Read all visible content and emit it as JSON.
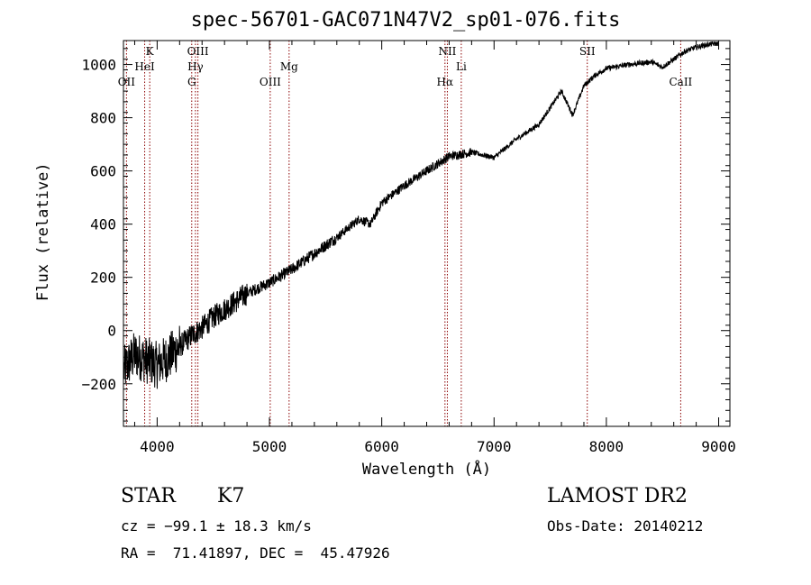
{
  "chart_data": {
    "type": "line",
    "title": "spec-56701-GAC071N47V2_sp01-076.fits",
    "xlabel": "Wavelength (Å)",
    "ylabel": "Flux (relative)",
    "xlim": [
      3700,
      9100
    ],
    "ylim": [
      -360,
      1090
    ],
    "xticks": [
      4000,
      5000,
      6000,
      7000,
      8000,
      9000
    ],
    "xtick_labels": [
      "4000",
      "5000",
      "6000",
      "7000",
      "8000",
      "9000"
    ],
    "yticks": [
      -200,
      0,
      200,
      400,
      600,
      800,
      1000
    ],
    "ytick_labels": [
      "−200",
      "0",
      "200",
      "400",
      "600",
      "800",
      "1000"
    ],
    "grid": false,
    "line_color": "#000000",
    "marker_color": "#8b0000",
    "series": [
      {
        "x": [
          3700,
          3800,
          3900,
          4000,
          4100,
          4200,
          4300,
          4400,
          4500,
          4600,
          4700,
          4800,
          4900,
          5000,
          5100,
          5200,
          5400,
          5600,
          5800,
          5900,
          6000,
          6200,
          6400,
          6600,
          6800,
          7000,
          7200,
          7400,
          7600,
          7700,
          7800,
          7900,
          8000,
          8200,
          8400,
          8500,
          8600,
          8700,
          8800,
          8900,
          9000
        ],
        "y": [
          -150,
          -90,
          -110,
          -130,
          -100,
          -60,
          -20,
          10,
          50,
          80,
          110,
          140,
          160,
          180,
          205,
          230,
          290,
          350,
          420,
          400,
          480,
          545,
          600,
          655,
          670,
          650,
          720,
          775,
          900,
          810,
          920,
          960,
          985,
          1000,
          1010,
          990,
          1020,
          1050,
          1065,
          1075,
          1080
        ]
      }
    ],
    "markers": [
      {
        "x": 3727,
        "label": "OII",
        "row": 3
      },
      {
        "x": 3934,
        "label": "K",
        "row": 1
      },
      {
        "x": 3889,
        "label": "HeI",
        "row": 2
      },
      {
        "x": 4308,
        "label": "G",
        "row": 3
      },
      {
        "x": 4341,
        "label": "Hγ",
        "row": 2
      },
      {
        "x": 4363,
        "label": "OIII",
        "row": 1
      },
      {
        "x": 5007,
        "label": "OIII",
        "row": 3
      },
      {
        "x": 5175,
        "label": "Mg",
        "row": 2
      },
      {
        "x": 6563,
        "label": "Hα",
        "row": 3
      },
      {
        "x": 6584,
        "label": "NII",
        "row": 1
      },
      {
        "x": 6708,
        "label": "Li",
        "row": 2
      },
      {
        "x": 7830,
        "label": "SII",
        "row": 1
      },
      {
        "x": 8662,
        "label": "CaII",
        "row": 3
      }
    ]
  },
  "footer": {
    "class_label": "STAR",
    "subclass": "K7",
    "survey": "LAMOST DR2",
    "cz": "cz = −99.1 ± 18.3 km/s",
    "obs_date": "Obs-Date: 20140212",
    "coords": "RA =  71.41897, DEC =  45.47926"
  }
}
